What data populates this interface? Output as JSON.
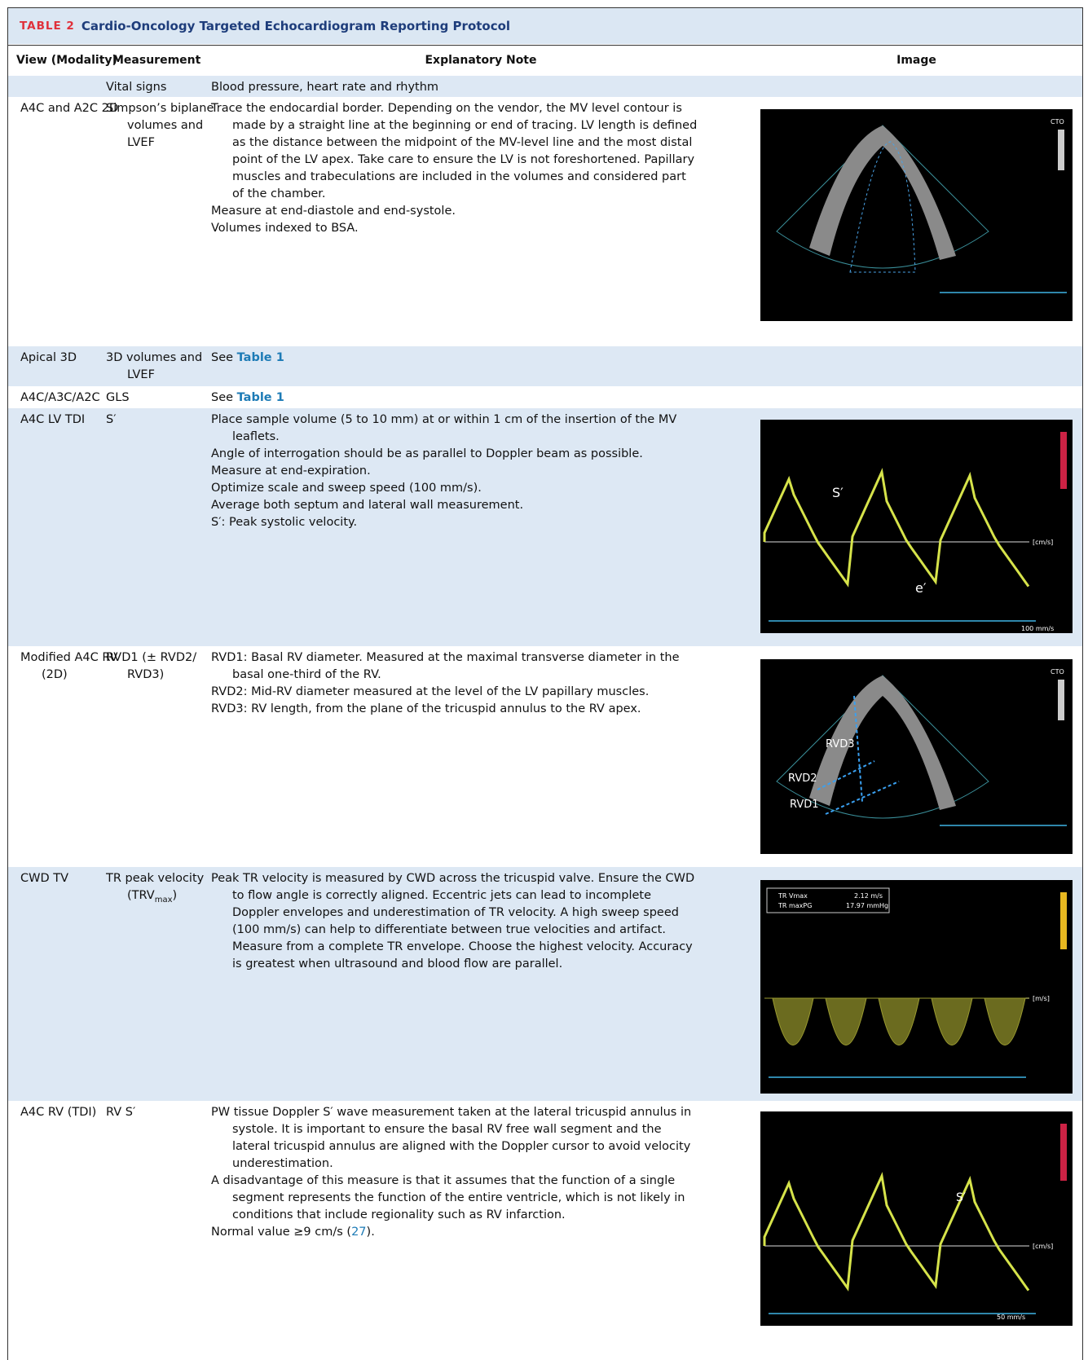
{
  "header": {
    "label": "TABLE 2",
    "title": "Cardio-Oncology Targeted Echocardiogram Reporting Protocol"
  },
  "table": {
    "columns": [
      "View (Modality)",
      "Measurement",
      "Explanatory Note",
      "Image"
    ],
    "rows": [
      {
        "view": "",
        "measurement": "Vital signs",
        "notes": [
          "Blood pressure, heart rate and rhythm"
        ]
      },
      {
        "view": "A4C and A2C 2D",
        "measurement": "Simpson’s biplane volumes and LVEF",
        "notes": [
          "Trace the endocardial border. Depending on the vendor, the MV level contour is made by a straight line at the beginning or end of tracing. LV length is defined as the distance between the midpoint of the MV-level line and the most distal point of the LV apex. Take care to ensure the LV is not foreshortened. Papillary muscles and trabeculations are included in the volumes and considered part of the chamber.",
          "Measure at end-diastole and end-systole.",
          "Volumes indexed to BSA."
        ],
        "image_labels": [
          "CTO"
        ]
      },
      {
        "view": "Apical 3D",
        "measurement": "3D volumes and LVEF",
        "notes": [
          {
            "text": "See ",
            "link": "Table 1"
          }
        ]
      },
      {
        "view": "A4C/A3C/A2C",
        "measurement": "GLS",
        "notes": [
          {
            "text": "See ",
            "link": "Table 1"
          }
        ]
      },
      {
        "view": "A4C LV TDI",
        "measurement": "S′",
        "notes": [
          "Place sample volume (5 to 10 mm) at or within 1 cm of the insertion of the MV leaflets.",
          "Angle of interrogation should be as parallel to Doppler beam as possible.",
          "Measure at end-expiration.",
          "Optimize scale and sweep speed (100 mm/s).",
          "Average both septum and lateral wall measurement.",
          "S′: Peak systolic velocity."
        ],
        "image_labels": [
          "S′",
          "e′",
          "[cm/s]",
          "100 mm/s"
        ]
      },
      {
        "view": "Modified A4C RV (2D)",
        "measurement": "RVD1 (± RVD2/ RVD3)",
        "notes": [
          "RVD1: Basal RV diameter. Measured at the maximal transverse diameter in the basal one-third of the RV.",
          "RVD2: Mid-RV diameter measured at the level of the LV papillary muscles.",
          "RVD3: RV length, from the plane of the tricuspid annulus to the RV apex."
        ],
        "image_labels": [
          "RVD3",
          "RVD2",
          "RVD1",
          "CTO"
        ]
      },
      {
        "view": "CWD TV",
        "measurement": {
          "text": "TR peak velocity (TRV",
          "sub": "max",
          "after": ")"
        },
        "notes": [
          "Peak TR velocity is measured by CWD across the tricuspid valve. Ensure the CWD to flow angle is correctly aligned. Eccentric jets can lead to incomplete Doppler envelopes and underestimation of TR velocity. A high sweep speed (100 mm/s) can help to differentiate between true velocities and artifact. Measure from a complete TR envelope. Choose the highest velocity. Accuracy is greatest when ultrasound and blood flow are parallel."
        ],
        "image_labels": [
          "TR Vmax",
          "2.12 m/s",
          "TR maxPG",
          "17.97 mmHg",
          "[m/s]"
        ]
      },
      {
        "view": "A4C RV (TDI)",
        "measurement": "RV S′",
        "notes": [
          "PW tissue Doppler S′ wave measurement taken at the lateral tricuspid annulus in systole. It is important to ensure the basal RV free wall segment and the lateral tricuspid annulus are aligned with the Doppler cursor to avoid velocity underestimation.",
          "A disadvantage of this measure is that it assumes that the function of a single segment represents the function of the entire ventricle, which is not likely in conditions that include regionality such as RV infarction.",
          {
            "text": "Normal value ≥9 cm/s (",
            "link": "27",
            "after": ")."
          }
        ],
        "image_labels": [
          "S′",
          "[cm/s]",
          "50 mm/s"
        ]
      }
    ]
  }
}
